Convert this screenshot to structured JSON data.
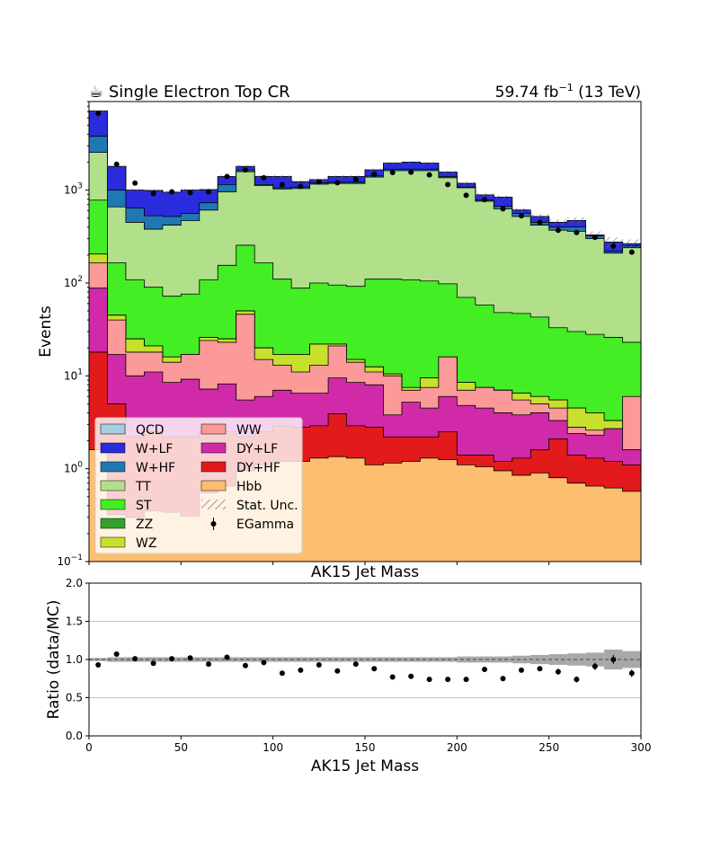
{
  "chart_data": {
    "type": "area",
    "title_left": "☕ Single Electron Top CR",
    "title_right_value": "59.74 fb",
    "title_right_exp": "−1",
    "title_right_tail": " (13 TeV)",
    "xlabel_top": "AK15 Jet Mass",
    "xlabel": "AK15 Jet Mass",
    "ylabel": "Events",
    "ratio_ylabel": "Ratio (data/MC)",
    "xlim": [
      0,
      300
    ],
    "ylim": [
      0.1,
      9000
    ],
    "yscale": "log",
    "ratio_ylim": [
      0,
      2
    ],
    "x_ticks": [
      "0",
      "50",
      "100",
      "150",
      "200",
      "250",
      "300"
    ],
    "x_tick_values": [
      0,
      50,
      100,
      150,
      200,
      250,
      300
    ],
    "y_ticks": [
      {
        "base": "10",
        "exp": "−1",
        "value": 0.1
      },
      {
        "base": "10",
        "exp": "0",
        "value": 1
      },
      {
        "base": "10",
        "exp": "1",
        "value": 10
      },
      {
        "base": "10",
        "exp": "2",
        "value": 100
      },
      {
        "base": "10",
        "exp": "3",
        "value": 1000
      }
    ],
    "ratio_y_ticks": [
      "0.0",
      "0.5",
      "1.0",
      "1.5",
      "2.0"
    ],
    "ratio_y_tick_values": [
      0,
      0.5,
      1.0,
      1.5,
      2.0
    ],
    "bin_edges": [
      0,
      10,
      20,
      30,
      40,
      50,
      60,
      70,
      80,
      90,
      100,
      110,
      120,
      130,
      140,
      150,
      160,
      170,
      180,
      190,
      200,
      210,
      220,
      230,
      240,
      250,
      260,
      270,
      280,
      290,
      300
    ],
    "stack_order": [
      "Hbb",
      "DY+HF",
      "DY+LF",
      "WW",
      "WZ",
      "ZZ",
      "ST",
      "TT",
      "W+HF",
      "W+LF",
      "QCD"
    ],
    "cumulative_tops": {
      "Hbb": [
        1.6,
        0.32,
        0.3,
        0.35,
        0.34,
        0.31,
        0.55,
        0.65,
        0.95,
        1.1,
        1.2,
        1.2,
        1.3,
        1.35,
        1.3,
        1.1,
        1.15,
        1.2,
        1.3,
        1.25,
        1.1,
        1.05,
        0.95,
        0.85,
        0.9,
        0.8,
        0.7,
        0.65,
        0.62,
        0.57
      ],
      "DY+HF": [
        18,
        5,
        2.2,
        2.5,
        2.2,
        2.2,
        2.5,
        2.5,
        2.2,
        2.5,
        2.9,
        2.8,
        2.9,
        3.9,
        2.9,
        2.8,
        2.2,
        2.2,
        2.2,
        2.5,
        1.4,
        1.4,
        1.2,
        1.3,
        1.6,
        2.1,
        1.4,
        1.3,
        1.2,
        1.1
      ],
      "DY+LF": [
        88,
        17,
        10,
        11,
        8.5,
        9.2,
        7.2,
        8.2,
        5.5,
        6,
        7,
        6.5,
        6.5,
        9.5,
        8.5,
        8,
        3.8,
        5.2,
        4.5,
        6,
        4.8,
        4.5,
        4,
        3.8,
        4,
        3.3,
        2.4,
        2.3,
        2.7,
        1.6
      ],
      "WW": [
        165,
        40,
        18,
        18,
        14,
        17,
        24,
        23,
        46,
        15,
        13,
        11,
        13,
        21,
        14,
        11,
        10,
        7,
        7.5,
        16,
        7,
        7.5,
        7,
        5.5,
        5,
        4.5,
        2.8,
        2.6,
        2.3,
        6
      ],
      "WZ": [
        205,
        45,
        25,
        21,
        16,
        17,
        26,
        25,
        50,
        20,
        17,
        17,
        22,
        22,
        15,
        12.5,
        10.5,
        7.5,
        9.5,
        16,
        8.5,
        7.5,
        7,
        6.5,
        6,
        5.5,
        4.5,
        4,
        3.3,
        2.2
      ],
      "ZZ": [
        205,
        45,
        25,
        21,
        16,
        17,
        26,
        25,
        50,
        20,
        17,
        17,
        22,
        22,
        15,
        12.5,
        10.5,
        7.5,
        9.5,
        16,
        8.5,
        7.5,
        7,
        6.5,
        6,
        5.5,
        4.5,
        4,
        3.3,
        2.2
      ],
      "ST": [
        780,
        165,
        108,
        90,
        72,
        76,
        108,
        155,
        255,
        165,
        110,
        88,
        100,
        95,
        92,
        110,
        110,
        108,
        105,
        98,
        70,
        58,
        48,
        47,
        43,
        33,
        30,
        28,
        26,
        23
      ],
      "TT": [
        2550,
        660,
        450,
        380,
        420,
        470,
        610,
        960,
        1580,
        1120,
        1030,
        1040,
        1160,
        1180,
        1180,
        1380,
        1620,
        1620,
        1620,
        1360,
        1060,
        760,
        630,
        520,
        420,
        370,
        360,
        300,
        210,
        240
      ],
      "W+HF": [
        3800,
        1000,
        640,
        530,
        520,
        560,
        730,
        1150,
        1650,
        1150,
        1060,
        1080,
        1200,
        1220,
        1220,
        1420,
        1680,
        1680,
        1680,
        1400,
        1080,
        780,
        670,
        560,
        450,
        400,
        400,
        320,
        220,
        250
      ],
      "W+LF": [
        7100,
        1800,
        1000,
        990,
        950,
        1000,
        1010,
        1400,
        1800,
        1400,
        1400,
        1230,
        1300,
        1400,
        1400,
        1650,
        1950,
        2000,
        1950,
        1560,
        1180,
        890,
        840,
        610,
        520,
        450,
        470,
        330,
        275,
        265
      ],
      "QCD": [
        7100,
        1800,
        1000,
        990,
        950,
        1000,
        1010,
        1400,
        1800,
        1400,
        1400,
        1230,
        1300,
        1400,
        1400,
        1650,
        1950,
        2000,
        1950,
        1560,
        1180,
        890,
        840,
        610,
        520,
        450,
        470,
        330,
        275,
        265
      ]
    },
    "colors": {
      "QCD": "#a6cee3",
      "W+LF": "#2b2bde",
      "W+HF": "#1f78b4",
      "TT": "#b2df8a",
      "ST": "#43ee25",
      "ZZ": "#33a02c",
      "WZ": "#c6e02d",
      "WW": "#fb9a99",
      "DY+LF": "#d02aa8",
      "DY+HF": "#e31a1c",
      "Hbb": "#fdbf6f"
    },
    "data_x": [
      5,
      15,
      25,
      35,
      45,
      55,
      65,
      75,
      85,
      95,
      105,
      115,
      125,
      135,
      145,
      155,
      165,
      175,
      185,
      195,
      205,
      215,
      225,
      235,
      245,
      255,
      265,
      275,
      285,
      295
    ],
    "data_y": [
      6700,
      1900,
      1190,
      920,
      960,
      940,
      960,
      1400,
      1650,
      1360,
      1150,
      1100,
      1230,
      1200,
      1300,
      1480,
      1550,
      1560,
      1460,
      1150,
      880,
      790,
      630,
      530,
      450,
      370,
      350,
      310,
      250,
      215
    ],
    "ratio_y": [
      0.93,
      1.07,
      1.01,
      0.95,
      1.01,
      1.02,
      0.94,
      1.03,
      0.92,
      0.96,
      0.82,
      0.86,
      0.93,
      0.85,
      0.94,
      0.88,
      0.77,
      0.78,
      0.74,
      0.74,
      0.74,
      0.87,
      0.75,
      0.86,
      0.88,
      0.84,
      0.74,
      0.91,
      1.0,
      0.82
    ],
    "ratio_err": [
      0.01,
      0.02,
      0.02,
      0.02,
      0.02,
      0.02,
      0.02,
      0.02,
      0.02,
      0.02,
      0.02,
      0.02,
      0.02,
      0.02,
      0.02,
      0.02,
      0.02,
      0.02,
      0.02,
      0.02,
      0.02,
      0.02,
      0.03,
      0.03,
      0.03,
      0.04,
      0.04,
      0.05,
      0.06,
      0.05
    ],
    "stat_unc_band": [
      0.02,
      0.03,
      0.03,
      0.03,
      0.03,
      0.03,
      0.03,
      0.03,
      0.03,
      0.03,
      0.03,
      0.03,
      0.03,
      0.03,
      0.03,
      0.03,
      0.03,
      0.03,
      0.03,
      0.03,
      0.04,
      0.04,
      0.04,
      0.05,
      0.06,
      0.07,
      0.08,
      0.09,
      0.13,
      0.11
    ],
    "legend": {
      "placement": "lower-left",
      "col1": [
        "QCD",
        "W+LF",
        "W+HF",
        "TT",
        "ST",
        "ZZ",
        "WZ"
      ],
      "col2": [
        "WW",
        "DY+LF",
        "DY+HF",
        "Hbb",
        "Stat. Unc.",
        "EGamma"
      ]
    }
  }
}
